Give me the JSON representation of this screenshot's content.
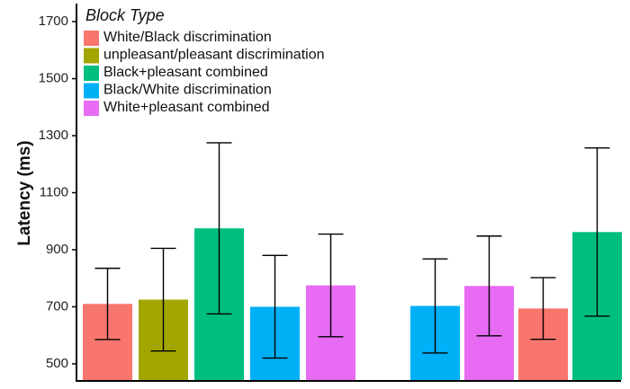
{
  "chart_data": {
    "type": "bar",
    "categories": [
      null,
      null
    ],
    "series": [
      {
        "name": "White/Black discrimination",
        "color": "#f8766d",
        "values": [
          710,
          694
        ],
        "errors": [
          125,
          108
        ]
      },
      {
        "name": "unpleasant/pleasant discrimination",
        "color": "#a3a500",
        "values": [
          725,
          null
        ],
        "errors": [
          180,
          null
        ]
      },
      {
        "name": "Black+pleasant combined",
        "color": "#00bf7d",
        "values": [
          975,
          962
        ],
        "errors": [
          300,
          295
        ]
      },
      {
        "name": "Black/White discrimination",
        "color": "#00b0f6",
        "values": [
          700,
          703
        ],
        "errors": [
          180,
          165
        ]
      },
      {
        "name": "White+pleasant combined",
        "color": "#e76bf3",
        "values": [
          775,
          773
        ],
        "errors": [
          180,
          175
        ]
      }
    ],
    "legend_title": "Block Type",
    "ylabel": "Latency (ms)",
    "ylim": [
      440,
      1760
    ],
    "yticks": [
      500,
      700,
      900,
      1100,
      1300,
      1500,
      1700
    ],
    "grid": false
  }
}
